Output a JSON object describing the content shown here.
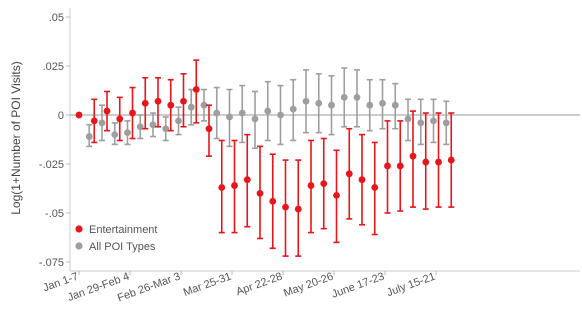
{
  "chart_data": {
    "type": "scatter",
    "ylabel": "Log(1+Number of POI Visits)",
    "xlabel": "",
    "ylim": [
      -0.08,
      0.053
    ],
    "yticks": [
      0.05,
      0.025,
      0,
      -0.025,
      -0.05,
      -0.075
    ],
    "ytick_labels": [
      ".05",
      ".025",
      "0",
      "-.025",
      "-.05",
      "-.075"
    ],
    "grid": false,
    "legend_position": "bottom-left",
    "x_count": 35,
    "xtick_positions": [
      0,
      4,
      8,
      12,
      16,
      20,
      24,
      28
    ],
    "xtick_labels": [
      "Jan 1-7",
      "Jan 29-Feb 4",
      "Feb 26-Mar 3",
      "Mar 25-31",
      "Apr 22-28",
      "May 20-26",
      "June 17-23",
      "July 15-21"
    ],
    "reference_line_y": 0,
    "series": [
      {
        "name": "Entertainment",
        "color": "#e8161b",
        "points": [
          {
            "x": 0,
            "y": 0,
            "lo": 0,
            "hi": 0
          },
          {
            "x": 1,
            "y": -0.003,
            "lo": -0.014,
            "hi": 0.008
          },
          {
            "x": 2,
            "y": 0.002,
            "lo": -0.008,
            "hi": 0.012
          },
          {
            "x": 3,
            "y": -0.002,
            "lo": -0.013,
            "hi": 0.009
          },
          {
            "x": 4,
            "y": 0.001,
            "lo": -0.012,
            "hi": 0.014
          },
          {
            "x": 5,
            "y": 0.006,
            "lo": -0.007,
            "hi": 0.019
          },
          {
            "x": 6,
            "y": 0.007,
            "lo": -0.006,
            "hi": 0.019
          },
          {
            "x": 7,
            "y": 0.005,
            "lo": -0.008,
            "hi": 0.018
          },
          {
            "x": 8,
            "y": 0.007,
            "lo": -0.006,
            "hi": 0.021
          },
          {
            "x": 9,
            "y": 0.013,
            "lo": -0.004,
            "hi": 0.028
          },
          {
            "x": 10,
            "y": -0.007,
            "lo": -0.021,
            "hi": 0.005
          },
          {
            "x": 11,
            "y": -0.037,
            "lo": -0.06,
            "hi": -0.013
          },
          {
            "x": 12,
            "y": -0.036,
            "lo": -0.06,
            "hi": -0.013
          },
          {
            "x": 13,
            "y": -0.033,
            "lo": -0.057,
            "hi": -0.01
          },
          {
            "x": 14,
            "y": -0.04,
            "lo": -0.063,
            "hi": -0.016
          },
          {
            "x": 15,
            "y": -0.044,
            "lo": -0.068,
            "hi": -0.02
          },
          {
            "x": 16,
            "y": -0.047,
            "lo": -0.072,
            "hi": -0.023
          },
          {
            "x": 17,
            "y": -0.048,
            "lo": -0.072,
            "hi": -0.023
          },
          {
            "x": 18,
            "y": -0.036,
            "lo": -0.06,
            "hi": -0.013
          },
          {
            "x": 19,
            "y": -0.035,
            "lo": -0.058,
            "hi": -0.012
          },
          {
            "x": 20,
            "y": -0.041,
            "lo": -0.065,
            "hi": -0.018
          },
          {
            "x": 21,
            "y": -0.03,
            "lo": -0.053,
            "hi": -0.007
          },
          {
            "x": 22,
            "y": -0.033,
            "lo": -0.056,
            "hi": -0.01
          },
          {
            "x": 23,
            "y": -0.037,
            "lo": -0.061,
            "hi": -0.014
          },
          {
            "x": 24,
            "y": -0.026,
            "lo": -0.05,
            "hi": -0.003
          },
          {
            "x": 25,
            "y": -0.026,
            "lo": -0.049,
            "hi": -0.003
          },
          {
            "x": 26,
            "y": -0.021,
            "lo": -0.047,
            "hi": 0.002
          },
          {
            "x": 27,
            "y": -0.024,
            "lo": -0.048,
            "hi": 0.001
          },
          {
            "x": 28,
            "y": -0.024,
            "lo": -0.047,
            "hi": 0.001
          },
          {
            "x": 29,
            "y": -0.023,
            "lo": -0.047,
            "hi": 0.001
          }
        ]
      },
      {
        "name": "All POI Types",
        "color": "#9e9e9e",
        "points": [
          {
            "x": 0,
            "y": 0,
            "lo": 0,
            "hi": 0
          },
          {
            "x": 1,
            "y": -0.011,
            "lo": -0.016,
            "hi": -0.005
          },
          {
            "x": 2,
            "y": -0.004,
            "lo": -0.013,
            "hi": 0.005
          },
          {
            "x": 3,
            "y": -0.01,
            "lo": -0.015,
            "hi": -0.004
          },
          {
            "x": 4,
            "y": -0.009,
            "lo": -0.015,
            "hi": -0.003
          },
          {
            "x": 5,
            "y": -0.006,
            "lo": -0.012,
            "hi": 0.0
          },
          {
            "x": 6,
            "y": -0.005,
            "lo": -0.011,
            "hi": 0.001
          },
          {
            "x": 7,
            "y": -0.007,
            "lo": -0.013,
            "hi": -0.001
          },
          {
            "x": 8,
            "y": -0.003,
            "lo": -0.01,
            "hi": 0.004
          },
          {
            "x": 9,
            "y": 0.004,
            "lo": -0.005,
            "hi": 0.013
          },
          {
            "x": 10,
            "y": 0.005,
            "lo": -0.003,
            "hi": 0.013
          },
          {
            "x": 11,
            "y": 0.001,
            "lo": -0.012,
            "hi": 0.014
          },
          {
            "x": 12,
            "y": -0.001,
            "lo": -0.016,
            "hi": 0.013
          },
          {
            "x": 13,
            "y": 0.001,
            "lo": -0.014,
            "hi": 0.015
          },
          {
            "x": 14,
            "y": -0.002,
            "lo": -0.017,
            "hi": 0.012
          },
          {
            "x": 15,
            "y": 0.002,
            "lo": -0.013,
            "hi": 0.017
          },
          {
            "x": 16,
            "y": 0.0,
            "lo": -0.015,
            "hi": 0.015
          },
          {
            "x": 17,
            "y": 0.003,
            "lo": -0.013,
            "hi": 0.018
          },
          {
            "x": 18,
            "y": 0.007,
            "lo": -0.009,
            "hi": 0.023
          },
          {
            "x": 19,
            "y": 0.006,
            "lo": -0.009,
            "hi": 0.021
          },
          {
            "x": 20,
            "y": 0.005,
            "lo": -0.01,
            "hi": 0.02
          },
          {
            "x": 21,
            "y": 0.009,
            "lo": -0.006,
            "hi": 0.024
          },
          {
            "x": 22,
            "y": 0.009,
            "lo": -0.006,
            "hi": 0.023
          },
          {
            "x": 23,
            "y": 0.005,
            "lo": -0.008,
            "hi": 0.018
          },
          {
            "x": 24,
            "y": 0.006,
            "lo": -0.007,
            "hi": 0.018
          },
          {
            "x": 25,
            "y": 0.005,
            "lo": -0.007,
            "hi": 0.016
          },
          {
            "x": 26,
            "y": -0.002,
            "lo": -0.013,
            "hi": 0.008
          },
          {
            "x": 27,
            "y": -0.004,
            "lo": -0.015,
            "hi": 0.008
          },
          {
            "x": 28,
            "y": -0.003,
            "lo": -0.014,
            "hi": 0.008
          },
          {
            "x": 29,
            "y": -0.004,
            "lo": -0.015,
            "hi": 0.007
          }
        ]
      }
    ]
  }
}
